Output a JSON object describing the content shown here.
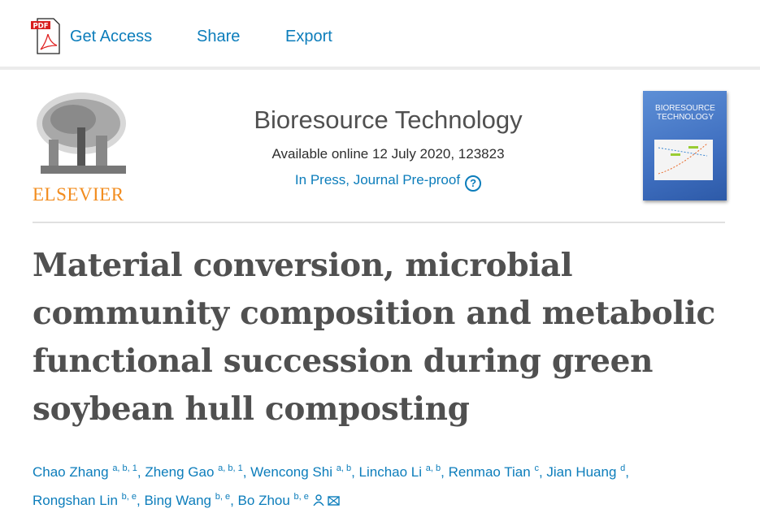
{
  "toolbar": {
    "pdf_icon_label": "PDF",
    "get_access": "Get Access",
    "share": "Share",
    "export": "Export"
  },
  "header": {
    "publisher": "ELSEVIER",
    "journal": "Bioresource Technology",
    "available": "Available online 12 July 2020, 123823",
    "status": "In Press, Journal Pre-proof",
    "help_icon": "?",
    "cover_title": "BIORESOURCE TECHNOLOGY"
  },
  "article": {
    "title": "Material conversion, microbial community composition and metabolic functional succession during green soybean hull composting"
  },
  "authors": [
    {
      "name": "Chao Zhang",
      "sup": "a, b, 1"
    },
    {
      "name": "Zheng Gao",
      "sup": "a, b, 1"
    },
    {
      "name": "Wencong Shi",
      "sup": "a, b"
    },
    {
      "name": "Linchao Li",
      "sup": "a, b"
    },
    {
      "name": "Renmao Tian",
      "sup": "c"
    },
    {
      "name": "Jian Huang",
      "sup": "d"
    },
    {
      "name": "Rongshan Lin",
      "sup": "b, e"
    },
    {
      "name": "Bing Wang",
      "sup": "b, e"
    },
    {
      "name": "Bo Zhou",
      "sup": "b, e"
    }
  ],
  "colors": {
    "link": "#0c7dbb",
    "title": "#505050",
    "elsevier": "#f28c1e"
  }
}
